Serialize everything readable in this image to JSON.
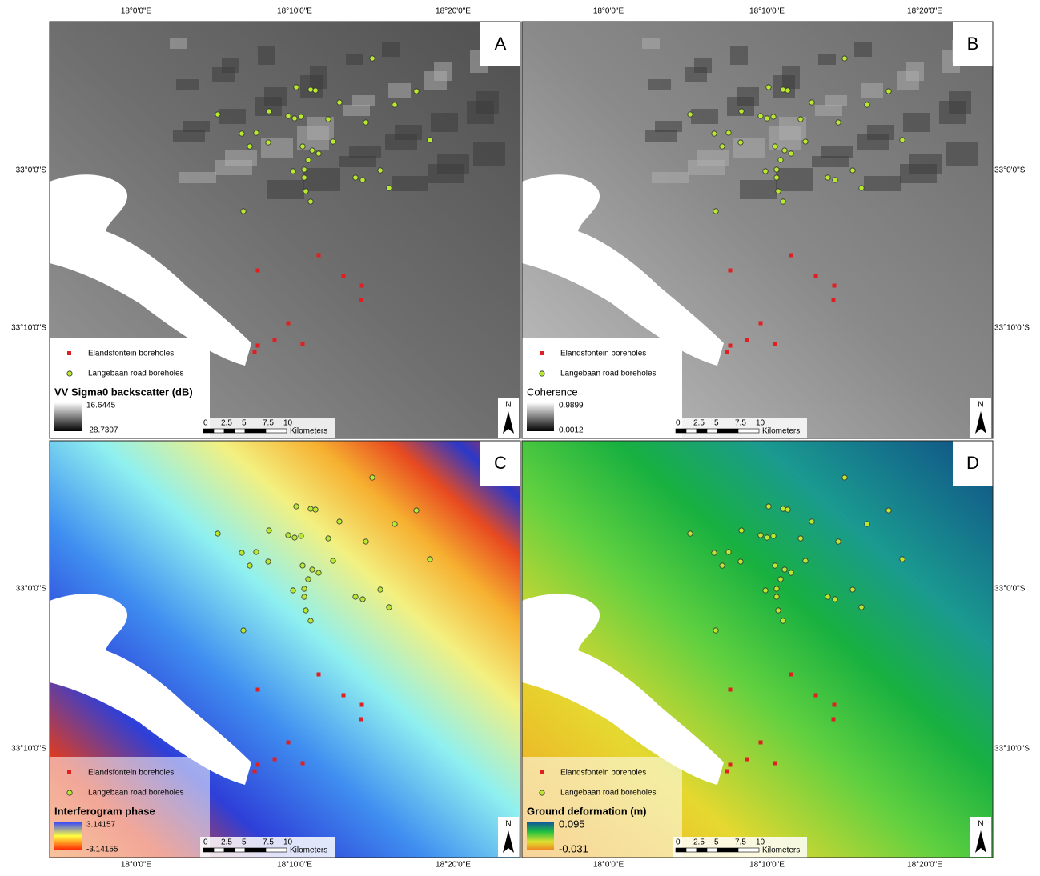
{
  "lon_labels": [
    "18°0'0\"E",
    "18°10'0\"E",
    "18°20'0\"E"
  ],
  "lat_labels": [
    "33°0'0\"S",
    "33°10'0\"S"
  ],
  "legend": [
    "Elandsfontein boreholes",
    "Langebaan road boreholes"
  ],
  "scale_bar": {
    "ticks": [
      "0",
      "2.5",
      "5",
      "7.5",
      "10"
    ],
    "unit": "Kilometers"
  },
  "north": "N",
  "panels": [
    {
      "letter": "A",
      "ramp_title": "VV Sigma0 backscatter (dB)",
      "ramp_max": "16.6445",
      "ramp_min": "-28.7307"
    },
    {
      "letter": "B",
      "ramp_title": "Coherence",
      "ramp_max": "0.9899",
      "ramp_min": "0.0012"
    },
    {
      "letter": "C",
      "ramp_title": "Interferogram phase",
      "ramp_max": "3.14157",
      "ramp_min": "-3.14155"
    },
    {
      "letter": "D",
      "ramp_title": "Ground deformation (m)",
      "ramp_max": "0.095",
      "ramp_min": "-0.031"
    }
  ]
}
